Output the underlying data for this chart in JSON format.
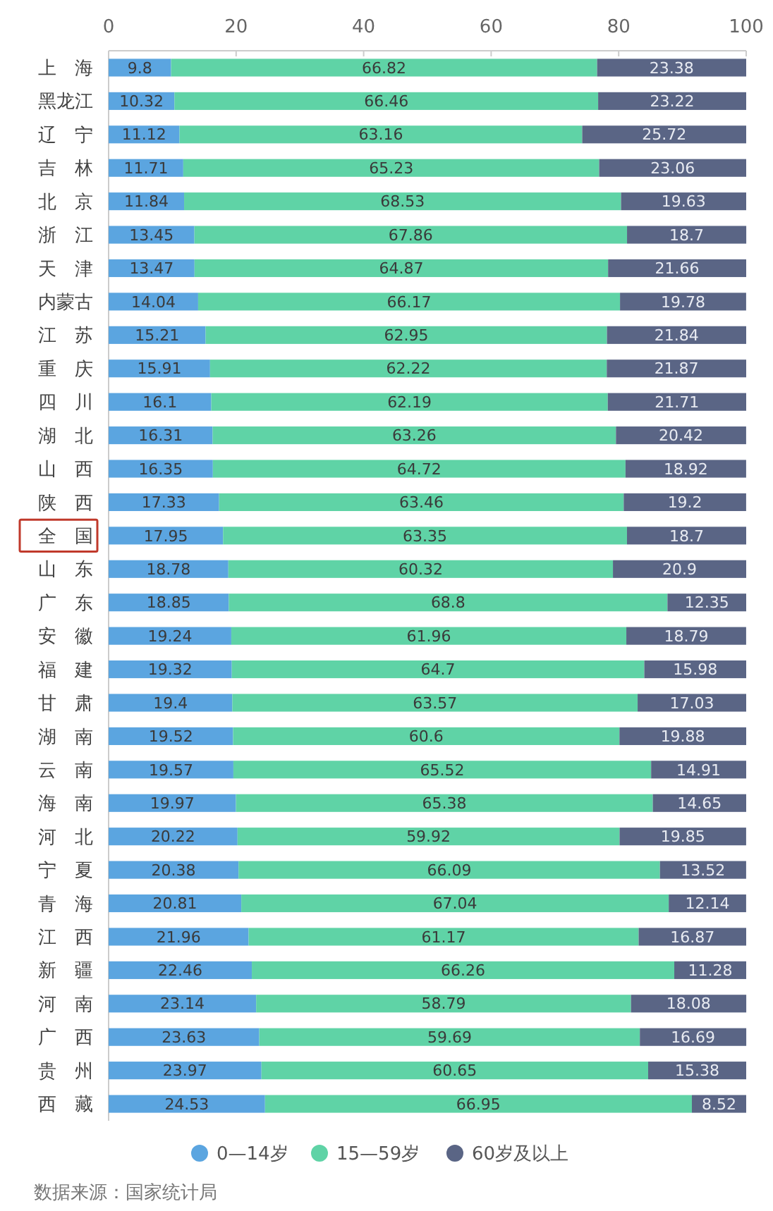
{
  "chart_data": {
    "type": "bar",
    "orientation": "horizontal",
    "stacked": true,
    "data_labels": true,
    "legend": "bottom",
    "marker": "circle",
    "categories": [
      "上海",
      "黑龙江",
      "辽宁",
      "吉林",
      "北京",
      "浙江",
      "天津",
      "内蒙古",
      "江苏",
      "重庆",
      "四川",
      "湖北",
      "山西",
      "陕西",
      "全国",
      "山东",
      "广东",
      "安徽",
      "福建",
      "甘肃",
      "湖南",
      "云南",
      "海南",
      "河北",
      "宁夏",
      "青海",
      "江西",
      "新疆",
      "河南",
      "广西",
      "贵州",
      "西藏"
    ],
    "series": [
      {
        "name": "0—14岁",
        "color": "#5ba5e0",
        "values": [
          9.8,
          10.32,
          11.12,
          11.71,
          11.84,
          13.45,
          13.47,
          14.04,
          15.21,
          15.91,
          16.1,
          16.31,
          16.35,
          17.33,
          17.95,
          18.78,
          18.85,
          19.24,
          19.32,
          19.4,
          19.52,
          19.57,
          19.97,
          20.22,
          20.38,
          20.81,
          21.96,
          22.46,
          23.14,
          23.63,
          23.97,
          24.53
        ]
      },
      {
        "name": "15—59岁",
        "color": "#5fd3a6",
        "values": [
          66.82,
          66.46,
          63.16,
          65.23,
          68.53,
          67.86,
          64.87,
          66.17,
          62.95,
          62.22,
          62.19,
          63.26,
          64.72,
          63.46,
          63.35,
          60.32,
          68.8,
          61.96,
          64.7,
          63.57,
          60.6,
          65.52,
          65.38,
          59.92,
          66.09,
          67.04,
          61.17,
          66.26,
          58.79,
          59.69,
          60.65,
          66.95
        ]
      },
      {
        "name": "60岁及以上",
        "color": "#5a6585",
        "values": [
          23.38,
          23.22,
          25.72,
          23.06,
          19.63,
          18.7,
          21.66,
          19.78,
          21.84,
          21.87,
          21.71,
          20.42,
          18.92,
          19.2,
          18.7,
          20.9,
          12.35,
          18.79,
          15.98,
          17.03,
          19.88,
          14.91,
          14.65,
          19.85,
          13.52,
          12.14,
          16.87,
          11.28,
          18.08,
          16.69,
          15.38,
          8.52
        ]
      }
    ],
    "xlim": [
      0,
      100
    ],
    "xticks": [
      0,
      20,
      40,
      60,
      80,
      100
    ],
    "annotations": [
      "数据来源：国家统计局"
    ]
  }
}
